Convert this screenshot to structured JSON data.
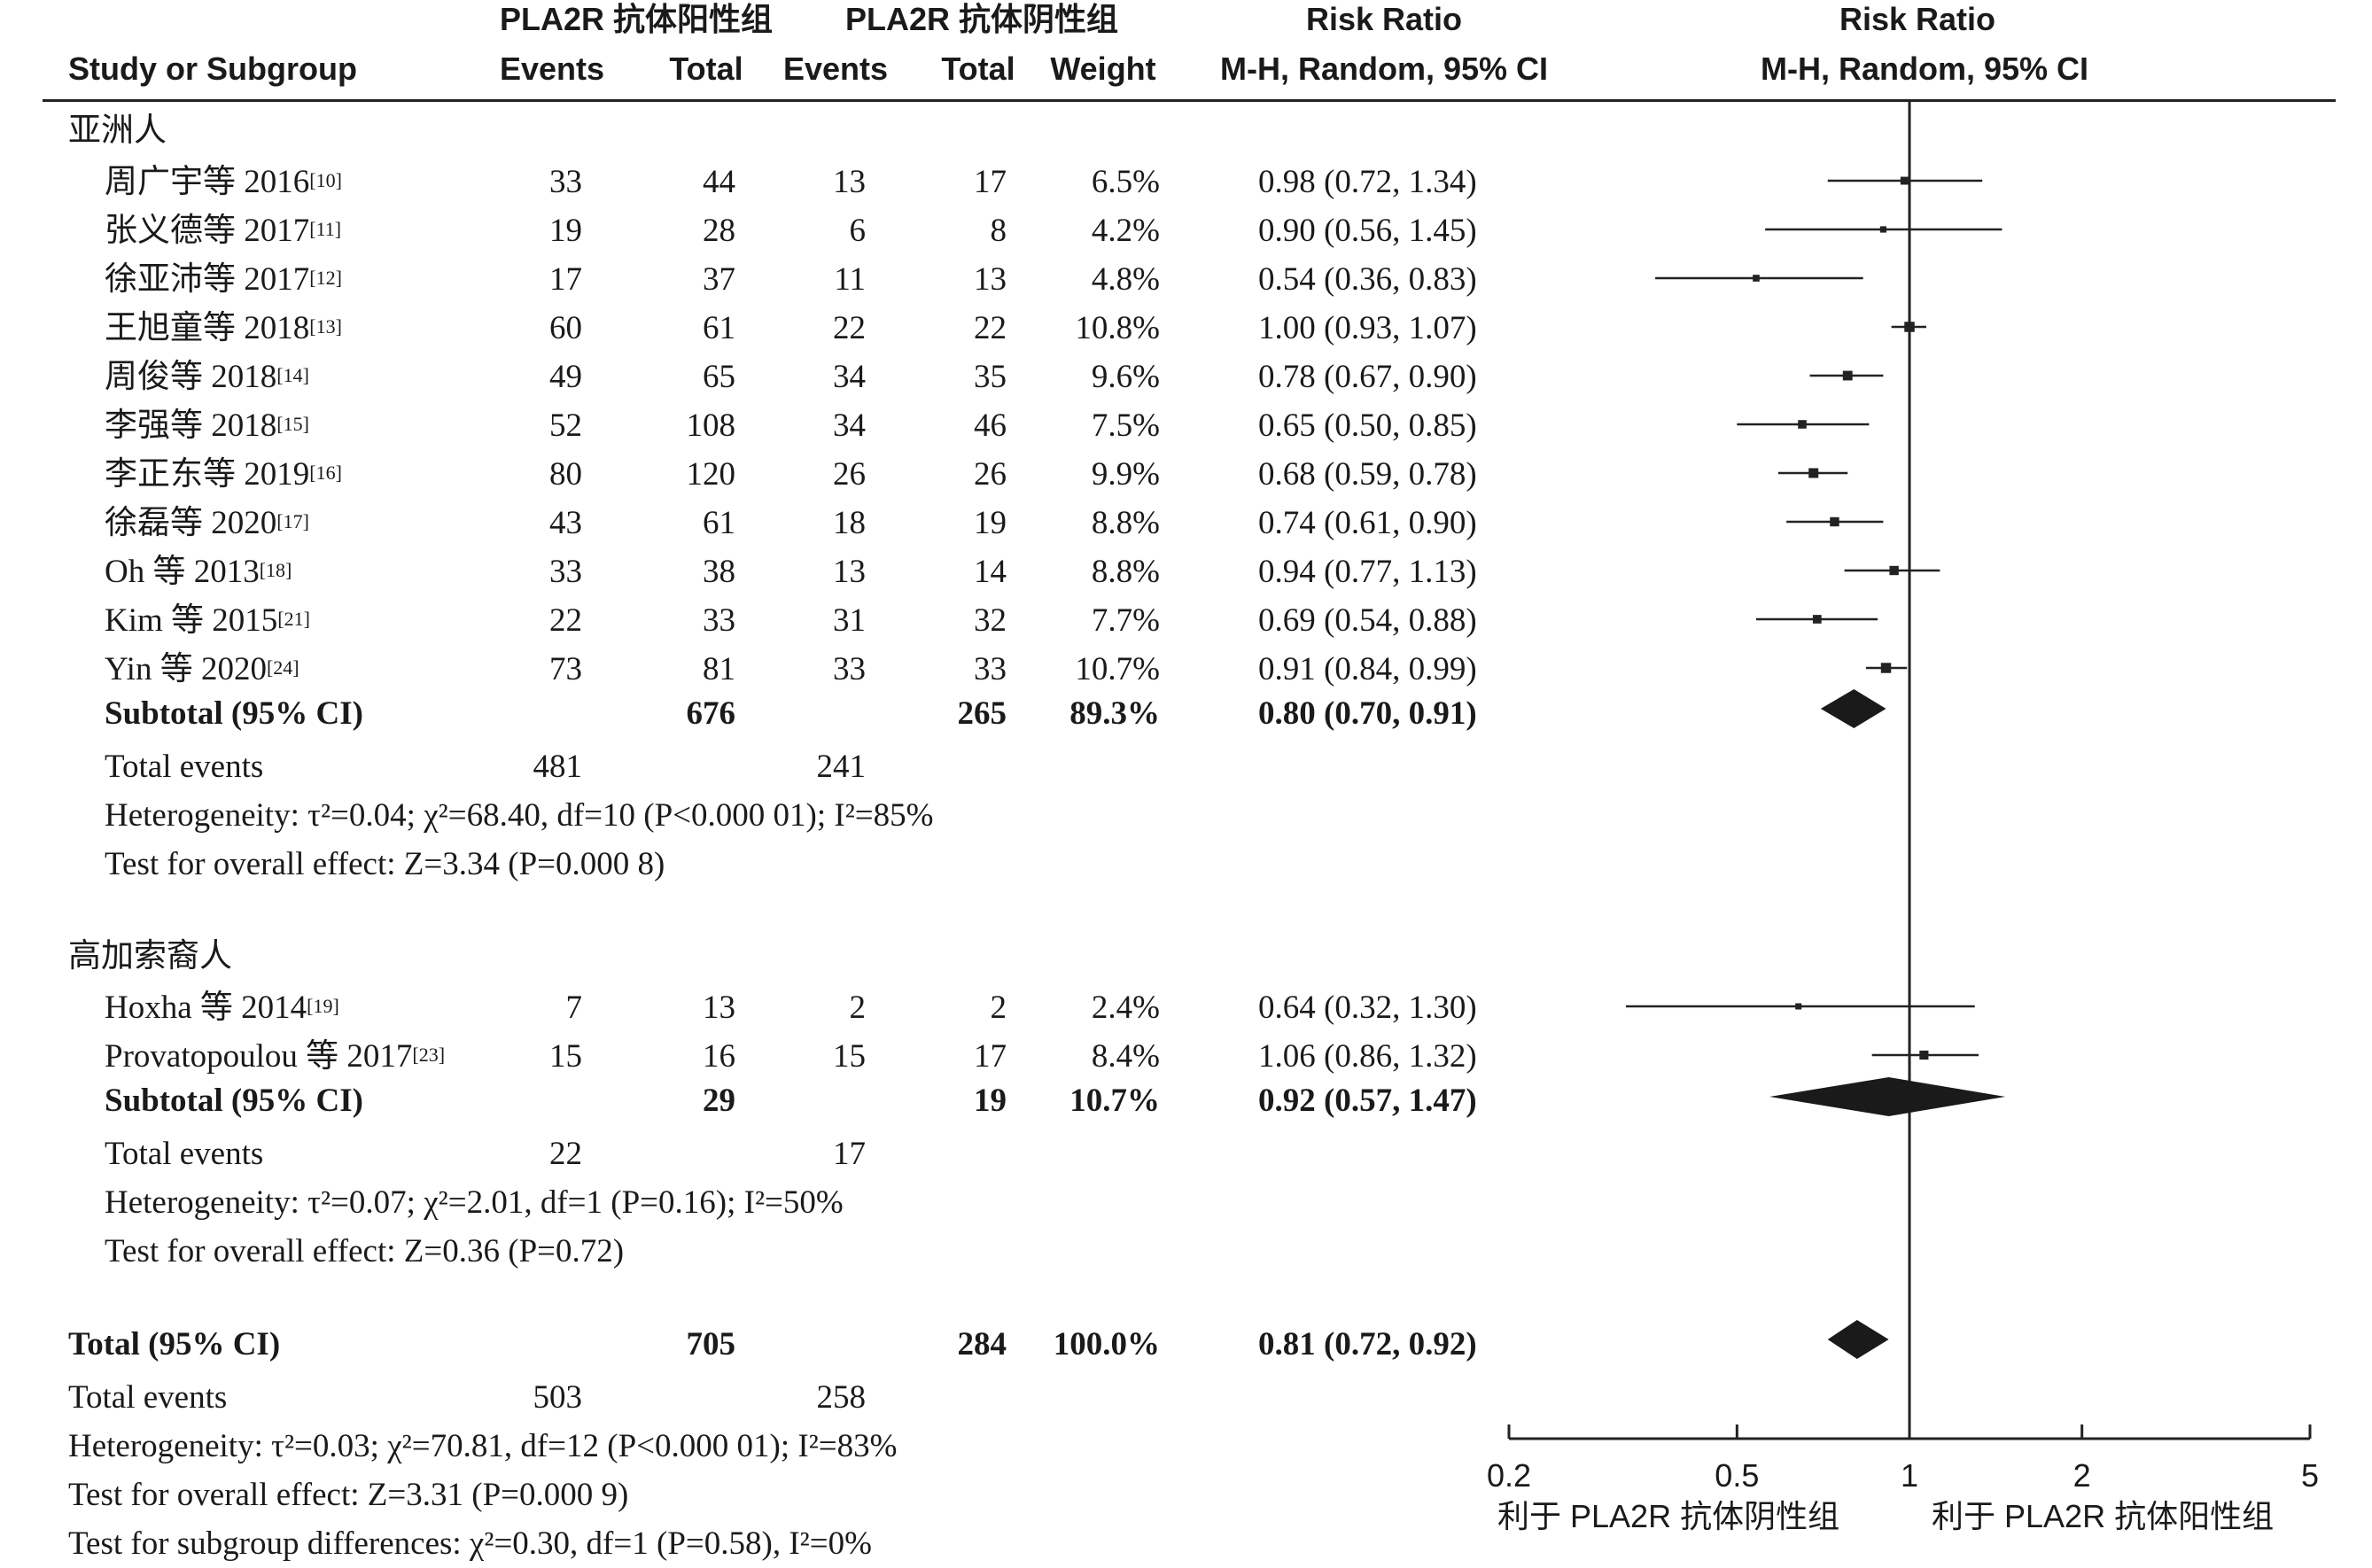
{
  "headers": {
    "study": "Study or Subgroup",
    "pos_group": "PLA2R 抗体阳性组",
    "neg_group": "PLA2R 抗体阴性组",
    "events": "Events",
    "total": "Total",
    "weight": "Weight",
    "rr": "Risk Ratio",
    "rr_method": "M-H, Random, 95% CI"
  },
  "groups": [
    {
      "name": "亚洲人",
      "studies": [
        {
          "label": "周广宇等 2016",
          "ref": "[10]",
          "e1": "33",
          "t1": "44",
          "e2": "13",
          "t2": "17",
          "w": "6.5%",
          "ci": "0.98 (0.72, 1.34)"
        },
        {
          "label": "张义德等 2017",
          "ref": "[11]",
          "e1": "19",
          "t1": "28",
          "e2": "6",
          "t2": "8",
          "w": "4.2%",
          "ci": "0.90 (0.56, 1.45)"
        },
        {
          "label": "徐亚沛等 2017",
          "ref": "[12]",
          "e1": "17",
          "t1": "37",
          "e2": "11",
          "t2": "13",
          "w": "4.8%",
          "ci": "0.54 (0.36, 0.83)"
        },
        {
          "label": "王旭童等 2018",
          "ref": "[13]",
          "e1": "60",
          "t1": "61",
          "e2": "22",
          "t2": "22",
          "w": "10.8%",
          "ci": "1.00 (0.93, 1.07)"
        },
        {
          "label": "周俊等 2018",
          "ref": "[14]",
          "e1": "49",
          "t1": "65",
          "e2": "34",
          "t2": "35",
          "w": "9.6%",
          "ci": "0.78 (0.67, 0.90)"
        },
        {
          "label": "李强等 2018",
          "ref": "[15]",
          "e1": "52",
          "t1": "108",
          "e2": "34",
          "t2": "46",
          "w": "7.5%",
          "ci": "0.65 (0.50, 0.85)"
        },
        {
          "label": "李正东等 2019",
          "ref": "[16]",
          "e1": "80",
          "t1": "120",
          "e2": "26",
          "t2": "26",
          "w": "9.9%",
          "ci": "0.68 (0.59, 0.78)"
        },
        {
          "label": "徐磊等 2020",
          "ref": "[17]",
          "e1": "43",
          "t1": "61",
          "e2": "18",
          "t2": "19",
          "w": "8.8%",
          "ci": "0.74 (0.61, 0.90)"
        },
        {
          "label": "Oh 等 2013",
          "ref": "[18]",
          "e1": "33",
          "t1": "38",
          "e2": "13",
          "t2": "14",
          "w": "8.8%",
          "ci": "0.94 (0.77, 1.13)"
        },
        {
          "label": "Kim 等 2015",
          "ref": "[21]",
          "e1": "22",
          "t1": "33",
          "e2": "31",
          "t2": "32",
          "w": "7.7%",
          "ci": "0.69 (0.54, 0.88)"
        },
        {
          "label": "Yin 等 2020",
          "ref": "[24]",
          "e1": "73",
          "t1": "81",
          "e2": "33",
          "t2": "33",
          "w": "10.7%",
          "ci": "0.91 (0.84, 0.99)"
        }
      ],
      "subtotal": {
        "label": "Subtotal (95% CI)",
        "t1": "676",
        "t2": "265",
        "w": "89.3%",
        "ci": "0.80 (0.70, 0.91)"
      },
      "total_events": {
        "label": "Total events",
        "e1": "481",
        "e2": "241"
      },
      "heterogeneity": "Heterogeneity: τ²=0.04; χ²=68.40, df=10 (P<0.000 01); I²=85%",
      "overall_effect": "Test for overall effect: Z=3.34 (P=0.000 8)"
    },
    {
      "name": "高加索裔人",
      "studies": [
        {
          "label": "Hoxha 等 2014",
          "ref": "[19]",
          "e1": "7",
          "t1": "13",
          "e2": "2",
          "t2": "2",
          "w": "2.4%",
          "ci": "0.64 (0.32, 1.30)"
        },
        {
          "label": "Provatopoulou 等 2017",
          "ref": "[23]",
          "e1": "15",
          "t1": "16",
          "e2": "15",
          "t2": "17",
          "w": "8.4%",
          "ci": "1.06 (0.86, 1.32)"
        }
      ],
      "subtotal": {
        "label": "Subtotal (95% CI)",
        "t1": "29",
        "t2": "19",
        "w": "10.7%",
        "ci": "0.92 (0.57, 1.47)"
      },
      "total_events": {
        "label": "Total events",
        "e1": "22",
        "e2": "17"
      },
      "heterogeneity": "Heterogeneity: τ²=0.07; χ²=2.01, df=1 (P=0.16); I²=50%",
      "overall_effect": "Test for overall effect: Z=0.36 (P=0.72)"
    }
  ],
  "total": {
    "label": "Total (95% CI)",
    "t1": "705",
    "t2": "284",
    "w": "100.0%",
    "ci": "0.81 (0.72, 0.92)"
  },
  "total_events": {
    "label": "Total events",
    "e1": "503",
    "e2": "258"
  },
  "heterogeneity": "Heterogeneity: τ²=0.03; χ²=70.81, df=12 (P<0.000 01); I²=83%",
  "overall_effect": "Test for overall effect: Z=3.31 (P=0.000 9)",
  "subgroup_diff": "Test for subgroup differences: χ²=0.30, df=1 (P=0.58), I²=0%",
  "axis": {
    "ticks": [
      "0.2",
      "0.5",
      "1",
      "2",
      "5"
    ],
    "favours_left": "利于 PLA2R 抗体阴性组",
    "favours_right": "利于 PLA2R 抗体阳性组"
  },
  "chart_data": {
    "type": "forest",
    "x_scale": "log",
    "xlim": [
      0.2,
      5
    ],
    "reference_line": 1,
    "studies": [
      {
        "rr": 0.98,
        "lo": 0.72,
        "hi": 1.34,
        "weight": 6.5
      },
      {
        "rr": 0.9,
        "lo": 0.56,
        "hi": 1.45,
        "weight": 4.2
      },
      {
        "rr": 0.54,
        "lo": 0.36,
        "hi": 0.83,
        "weight": 4.8
      },
      {
        "rr": 1.0,
        "lo": 0.93,
        "hi": 1.07,
        "weight": 10.8
      },
      {
        "rr": 0.78,
        "lo": 0.67,
        "hi": 0.9,
        "weight": 9.6
      },
      {
        "rr": 0.65,
        "lo": 0.5,
        "hi": 0.85,
        "weight": 7.5
      },
      {
        "rr": 0.68,
        "lo": 0.59,
        "hi": 0.78,
        "weight": 9.9
      },
      {
        "rr": 0.74,
        "lo": 0.61,
        "hi": 0.9,
        "weight": 8.8
      },
      {
        "rr": 0.94,
        "lo": 0.77,
        "hi": 1.13,
        "weight": 8.8
      },
      {
        "rr": 0.69,
        "lo": 0.54,
        "hi": 0.88,
        "weight": 7.7
      },
      {
        "rr": 0.91,
        "lo": 0.84,
        "hi": 0.99,
        "weight": 10.7
      },
      {
        "rr": 0.64,
        "lo": 0.32,
        "hi": 1.3,
        "weight": 2.4
      },
      {
        "rr": 1.06,
        "lo": 0.86,
        "hi": 1.32,
        "weight": 8.4
      }
    ],
    "summaries": [
      {
        "rr": 0.8,
        "lo": 0.7,
        "hi": 0.91
      },
      {
        "rr": 0.92,
        "lo": 0.57,
        "hi": 1.47
      },
      {
        "rr": 0.81,
        "lo": 0.72,
        "hi": 0.92
      }
    ]
  }
}
